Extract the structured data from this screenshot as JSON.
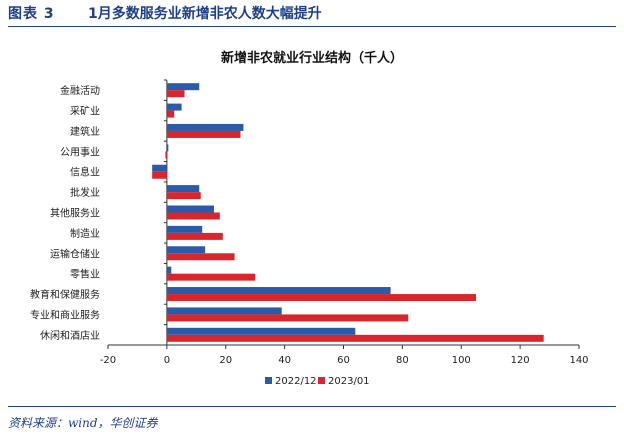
{
  "figure": {
    "label": "图表 3",
    "title": "1月多数服务业新增非农人数大幅提升",
    "source": "资料来源：wind，华创证券"
  },
  "colors": {
    "series_2022_12": "#2a5ba8",
    "series_2023_01": "#d8262c",
    "header": "#1f3f8a"
  },
  "chart_data": {
    "type": "bar",
    "orientation": "horizontal",
    "title": "新增非农就业行业结构（千人）",
    "categories": [
      "金融活动",
      "采矿业",
      "建筑业",
      "公用事业",
      "信息业",
      "批发业",
      "其他服务业",
      "制造业",
      "运输仓储业",
      "零售业",
      "教育和保健服务",
      "专业和商业服务",
      "休闲和酒店业"
    ],
    "series": [
      {
        "name": "2022/12",
        "values": [
          11,
          5,
          26,
          0.5,
          -5,
          11,
          16,
          12,
          13,
          1.5,
          76,
          39,
          64
        ]
      },
      {
        "name": "2023/01",
        "values": [
          6,
          2.5,
          25,
          -0.5,
          -5,
          11.5,
          18,
          19,
          23,
          30,
          105,
          82,
          128
        ]
      }
    ],
    "xlim": [
      -20,
      140
    ],
    "xticks": [
      -20,
      0,
      20,
      40,
      60,
      80,
      100,
      120,
      140
    ],
    "xlabel": "",
    "ylabel": "",
    "legend": "bottom",
    "grid": false
  }
}
